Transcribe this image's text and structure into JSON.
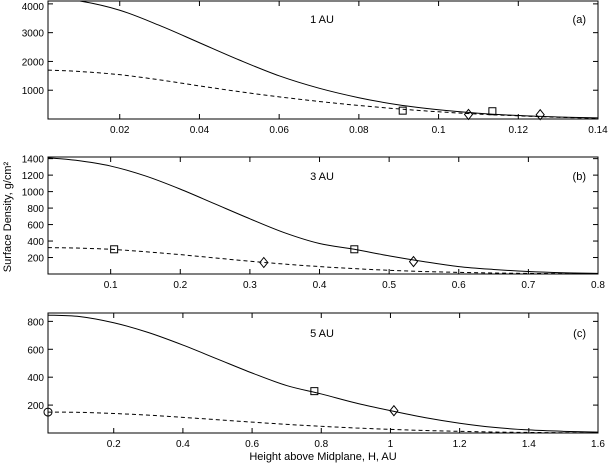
{
  "chart_data": [
    {
      "type": "line",
      "title": "1 AU",
      "panel_label": "(a)",
      "xlabel": "",
      "ylabel": "",
      "xlim": [
        0.002,
        0.14
      ],
      "ylim": [
        0,
        4100
      ],
      "xticks": [
        0.02,
        0.04,
        0.06,
        0.08,
        0.1,
        0.12,
        0.14
      ],
      "xtick_labels": [
        "0.02",
        "0.04",
        "0.06",
        "0.08",
        "0.1",
        "0.12",
        "0.14"
      ],
      "yticks": [
        1000,
        2000,
        3000,
        4000
      ],
      "ytick_labels": [
        "1000",
        "2000",
        "3000",
        "4000"
      ],
      "grid": false,
      "series": [
        {
          "style": "solid",
          "x": [
            0.002,
            0.01,
            0.02,
            0.03,
            0.04,
            0.05,
            0.06,
            0.07,
            0.08,
            0.09,
            0.1,
            0.11,
            0.12,
            0.13,
            0.14
          ],
          "y": [
            4200,
            4100,
            3780,
            3250,
            2650,
            2050,
            1500,
            1070,
            740,
            490,
            320,
            200,
            120,
            70,
            40
          ]
        },
        {
          "style": "dashed",
          "x": [
            0.002,
            0.01,
            0.02,
            0.03,
            0.04,
            0.05,
            0.06,
            0.07,
            0.08,
            0.09,
            0.1,
            0.11,
            0.12,
            0.13,
            0.14
          ],
          "y": [
            1700,
            1650,
            1540,
            1360,
            1150,
            950,
            770,
            610,
            470,
            350,
            250,
            170,
            110,
            60,
            30
          ]
        }
      ],
      "markers": [
        {
          "shape": "square",
          "x": 0.091,
          "y": 290
        },
        {
          "shape": "diamond",
          "x": 0.1075,
          "y": 160
        },
        {
          "shape": "square",
          "x": 0.1135,
          "y": 270
        },
        {
          "shape": "diamond",
          "x": 0.1255,
          "y": 150
        }
      ]
    },
    {
      "type": "line",
      "title": "3 AU",
      "panel_label": "(b)",
      "xlabel": "",
      "ylabel": "Surface Density, g/cm²",
      "xlim": [
        0.01,
        0.8
      ],
      "ylim": [
        0,
        1420
      ],
      "xticks": [
        0.1,
        0.2,
        0.3,
        0.4,
        0.5,
        0.6,
        0.7,
        0.8
      ],
      "xtick_labels": [
        "0.1",
        "0.2",
        "0.3",
        "0.4",
        "0.5",
        "0.6",
        "0.7",
        "0.8"
      ],
      "yticks": [
        200,
        400,
        600,
        800,
        1000,
        1200,
        1400
      ],
      "ytick_labels": [
        "200",
        "400",
        "600",
        "800",
        "1000",
        "1200",
        "1400"
      ],
      "grid": false,
      "series": [
        {
          "style": "solid",
          "x": [
            0.01,
            0.05,
            0.1,
            0.15,
            0.2,
            0.25,
            0.3,
            0.35,
            0.4,
            0.45,
            0.5,
            0.55,
            0.6,
            0.65,
            0.7,
            0.75,
            0.8
          ],
          "y": [
            1410,
            1380,
            1310,
            1190,
            1030,
            850,
            670,
            500,
            370,
            300,
            220,
            150,
            90,
            55,
            30,
            15,
            8
          ]
        },
        {
          "style": "dashed",
          "x": [
            0.01,
            0.05,
            0.1,
            0.15,
            0.2,
            0.25,
            0.3,
            0.35,
            0.4,
            0.45,
            0.5,
            0.55,
            0.6,
            0.65,
            0.7,
            0.75,
            0.8
          ],
          "y": [
            320,
            315,
            300,
            270,
            235,
            195,
            155,
            120,
            90,
            65,
            45,
            30,
            20,
            12,
            7,
            4,
            2
          ]
        }
      ],
      "markers": [
        {
          "shape": "square",
          "x": 0.105,
          "y": 300
        },
        {
          "shape": "diamond",
          "x": 0.32,
          "y": 140
        },
        {
          "shape": "square",
          "x": 0.45,
          "y": 300
        },
        {
          "shape": "diamond",
          "x": 0.535,
          "y": 150
        }
      ]
    },
    {
      "type": "line",
      "title": "5 AU",
      "panel_label": "(c)",
      "xlabel": "Height above Midplane, H, AU",
      "ylabel": "",
      "xlim": [
        0.01,
        1.6
      ],
      "ylim": [
        0,
        860
      ],
      "xticks": [
        0.2,
        0.4,
        0.6,
        0.8,
        1.0,
        1.2,
        1.4,
        1.6
      ],
      "xtick_labels": [
        "0.2",
        "0.4",
        "0.6",
        "0.8",
        "1",
        "1.2",
        "1.4",
        "1.6"
      ],
      "yticks": [
        200,
        400,
        600,
        800
      ],
      "ytick_labels": [
        "200",
        "400",
        "600",
        "800"
      ],
      "grid": false,
      "series": [
        {
          "style": "solid",
          "x": [
            0.01,
            0.1,
            0.2,
            0.3,
            0.4,
            0.5,
            0.6,
            0.7,
            0.8,
            0.9,
            1.0,
            1.1,
            1.2,
            1.3,
            1.4,
            1.5,
            1.6
          ],
          "y": [
            845,
            835,
            790,
            720,
            630,
            530,
            430,
            340,
            280,
            215,
            160,
            110,
            70,
            40,
            22,
            12,
            6
          ]
        },
        {
          "style": "dashed",
          "x": [
            0.01,
            0.1,
            0.2,
            0.3,
            0.4,
            0.5,
            0.6,
            0.7,
            0.8,
            0.9,
            1.0,
            1.1,
            1.2,
            1.3,
            1.4,
            1.5,
            1.6
          ],
          "y": [
            150,
            148,
            140,
            128,
            112,
            95,
            78,
            62,
            48,
            36,
            26,
            18,
            12,
            7,
            4,
            2,
            1
          ]
        }
      ],
      "markers": [
        {
          "shape": "circle",
          "x": 0.01,
          "y": 150
        },
        {
          "shape": "square",
          "x": 0.78,
          "y": 300
        },
        {
          "shape": "diamond",
          "x": 1.01,
          "y": 160
        }
      ]
    }
  ]
}
